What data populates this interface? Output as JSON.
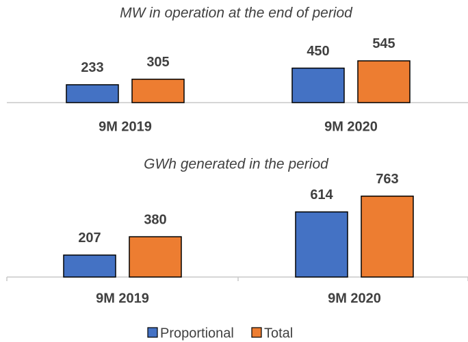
{
  "chart_data": [
    {
      "type": "bar",
      "title": "MW in operation at the end of period",
      "categories": [
        "9M 2019",
        "9M 2020"
      ],
      "series": [
        {
          "color": "#4472c4",
          "values": [
            233,
            450
          ]
        },
        {
          "color": "#ed7d31",
          "values": [
            305,
            545
          ]
        }
      ]
    },
    {
      "type": "bar",
      "title": "GWh generated in the period",
      "categories": [
        "9M 2019",
        "9M 2020"
      ],
      "series": [
        {
          "name": "Proportional",
          "color": "#4472c4",
          "values": [
            207,
            614
          ]
        },
        {
          "name": "Total",
          "color": "#ed7d31",
          "values": [
            380,
            763
          ]
        }
      ]
    }
  ]
}
